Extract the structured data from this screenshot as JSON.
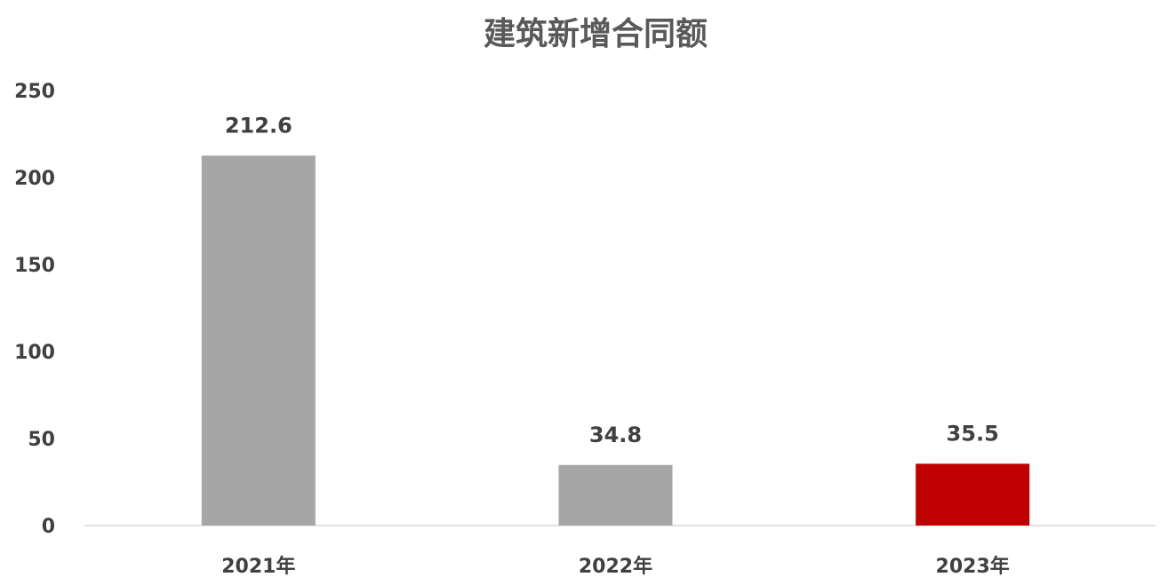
{
  "chart_data": {
    "type": "bar",
    "title": "建筑新增合同额",
    "categories": [
      "2021年",
      "2022年",
      "2023年"
    ],
    "values": [
      212.6,
      34.8,
      35.5
    ],
    "data_labels": [
      "212.6",
      "34.8",
      "35.5"
    ],
    "bar_colors": [
      "#a6a6a6",
      "#a6a6a6",
      "#c00000"
    ],
    "ylim": [
      0,
      250
    ],
    "yticks": [
      "0",
      "50",
      "100",
      "150",
      "200",
      "250"
    ],
    "ytick_values": [
      0,
      50,
      100,
      150,
      200,
      250
    ],
    "xlabel": "",
    "ylabel": "",
    "grid": false,
    "legend": "none"
  }
}
